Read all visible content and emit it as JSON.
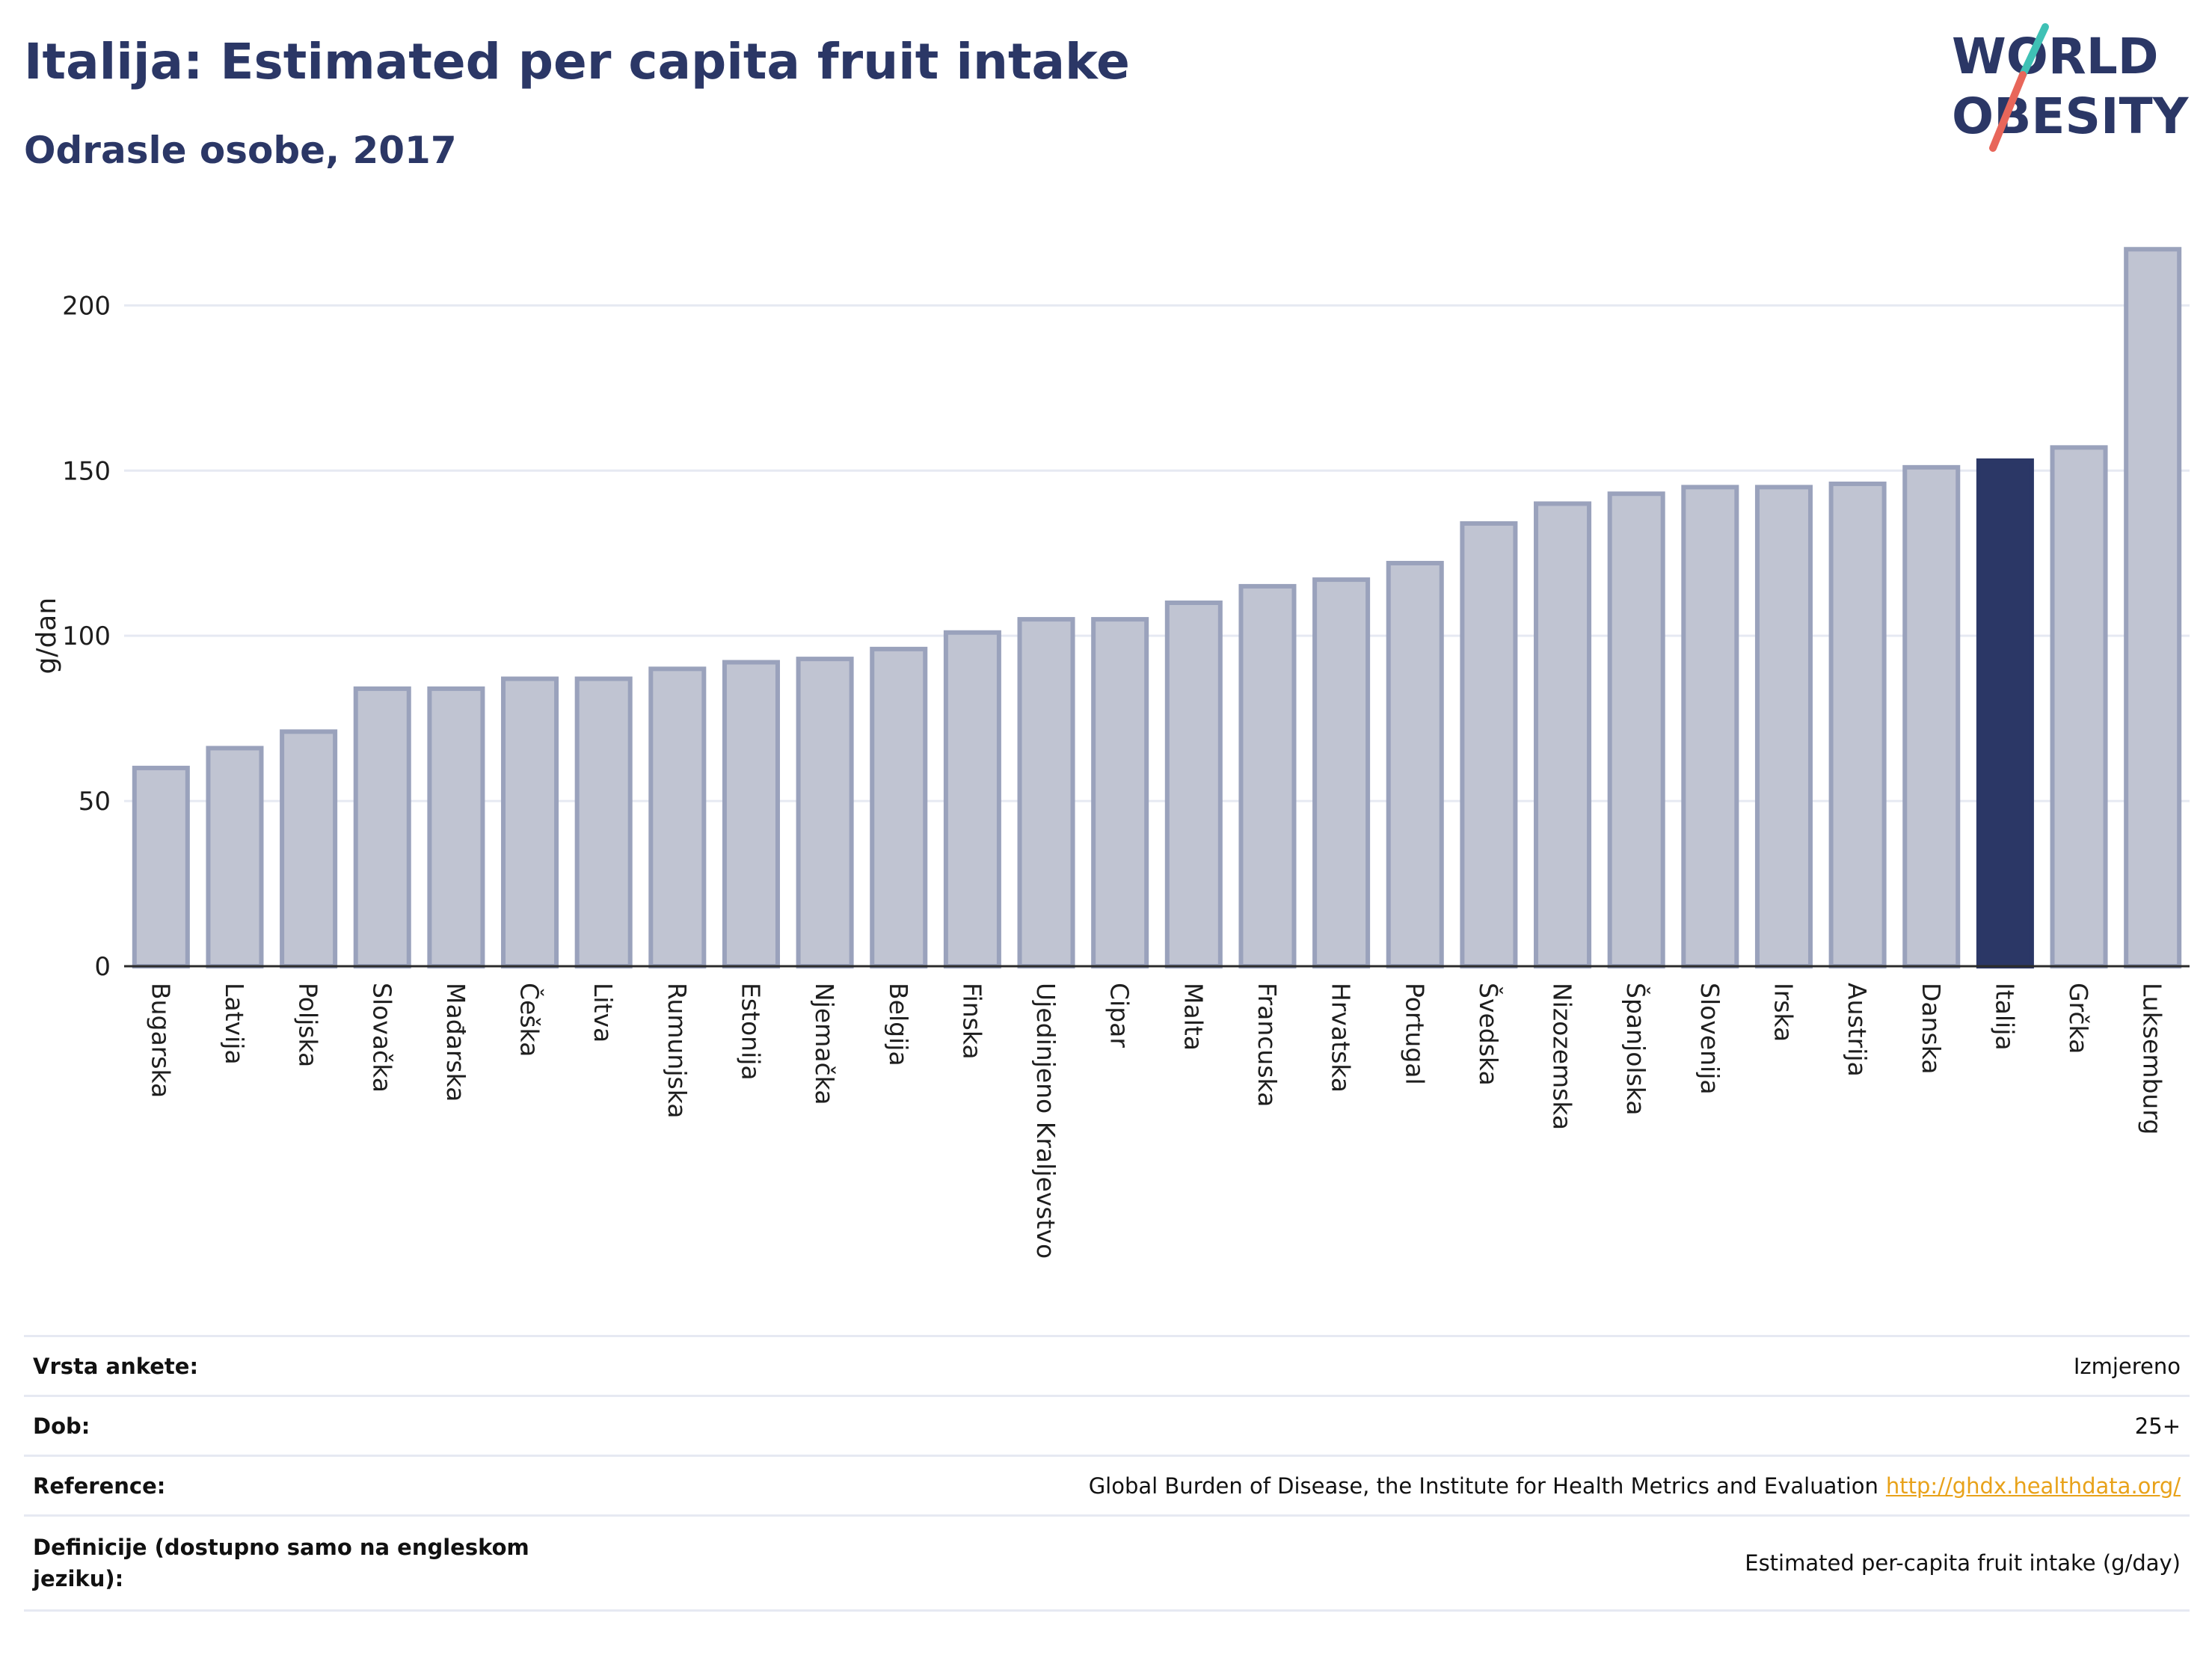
{
  "header": {
    "title": "Italija: Estimated per capita fruit intake",
    "subtitle": "Odrasle osobe, 2017"
  },
  "logo": {
    "line1": "WORLD",
    "line2": "OBESITY",
    "accent_teal": "#3fc1b5",
    "accent_red": "#e8665a",
    "text_color": "#2b3766"
  },
  "chart_data": {
    "type": "bar",
    "title": "Italija: Estimated per capita fruit intake",
    "subtitle": "Odrasle osobe, 2017",
    "ylabel": "g/dan",
    "xlabel": "",
    "ylim": [
      0,
      220
    ],
    "yticks": [
      0,
      50,
      100,
      150,
      200
    ],
    "grid": true,
    "highlight": "Italija",
    "colors": {
      "bar": "#c0c4d2",
      "bar_edge": "#9aa2bc",
      "highlight": "#2b3766",
      "grid": "#e6e9f2"
    },
    "categories": [
      "Bugarska",
      "Latvija",
      "Poljska",
      "Slovačka",
      "Mađarska",
      "Češka",
      "Litva",
      "Rumunjska",
      "Estonija",
      "Njemačka",
      "Belgija",
      "Finska",
      "Ujedinjeno Kraljevstvo",
      "Cipar",
      "Malta",
      "Francuska",
      "Hrvatska",
      "Portugal",
      "Švedska",
      "Nizozemska",
      "Španjolska",
      "Slovenija",
      "Irska",
      "Austrija",
      "Danska",
      "Italija",
      "Grčka",
      "Luksemburg"
    ],
    "values": [
      60,
      66,
      71,
      84,
      84,
      87,
      87,
      90,
      92,
      93,
      96,
      101,
      105,
      105,
      110,
      115,
      117,
      122,
      134,
      140,
      143,
      145,
      145,
      146,
      151,
      153,
      157,
      217
    ]
  },
  "meta": {
    "rows": [
      {
        "key": "Vrsta ankete:",
        "value": "Izmjereno"
      },
      {
        "key": "Dob:",
        "value": "25+"
      },
      {
        "key": "Reference:",
        "value": "Global Burden of Disease, the Institute for Health Metrics and Evaluation",
        "link": "http://ghdx.healthdata.org/"
      },
      {
        "key": "Definicije (dostupno samo na engleskom jeziku):",
        "value": "Estimated per-capita fruit intake (g/day)"
      }
    ]
  }
}
